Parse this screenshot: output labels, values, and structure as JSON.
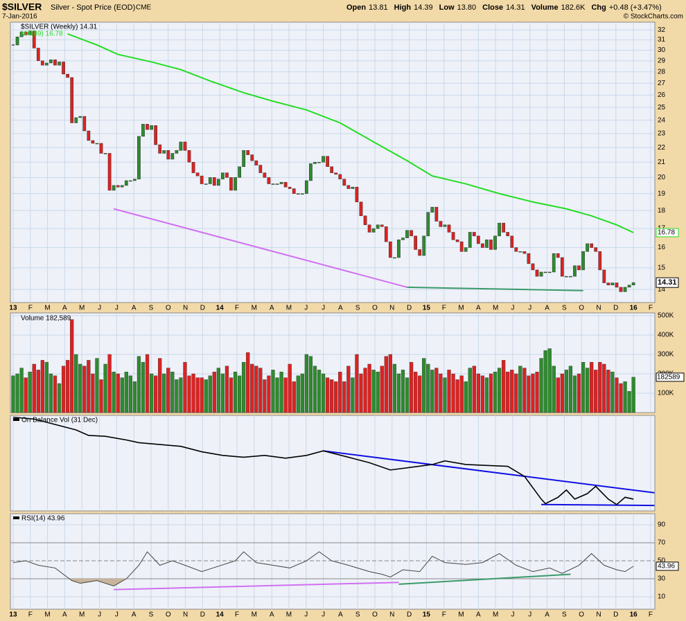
{
  "header": {
    "symbol": "$SILVER",
    "name": "Silver - Spot Price (EOD)",
    "exchange": "CME",
    "date": "7-Jan-2016",
    "credit": "© StockCharts.com",
    "quote_labels": [
      "Open",
      "High",
      "Low",
      "Close",
      "Volume",
      "Chg"
    ],
    "quote_values": [
      "13.81",
      "14.39",
      "13.80",
      "14.31",
      "182.6K",
      "+0.48 (+3.47%)"
    ]
  },
  "chart_data": [
    {
      "type": "candlestick",
      "legend": "$SILVER (Weekly) 14.31",
      "last_label": "14.31",
      "log": true,
      "up_color": "#2e8b2e",
      "down_color": "#dd2222",
      "closes": [
        30.5,
        31.3,
        31.8,
        31.5,
        31.9,
        30.2,
        29.0,
        28.6,
        28.8,
        29.1,
        28.6,
        28.9,
        27.8,
        27.5,
        23.8,
        24.2,
        24.3,
        23.2,
        22.5,
        22.3,
        22.3,
        21.6,
        21.6,
        19.2,
        19.5,
        19.4,
        19.5,
        19.8,
        19.8,
        19.9,
        22.8,
        23.7,
        23.3,
        23.6,
        22.2,
        21.6,
        21.8,
        21.2,
        21.6,
        21.8,
        22.4,
        21.8,
        21.0,
        20.3,
        20.1,
        19.6,
        19.6,
        20.0,
        19.5,
        19.9,
        20.3,
        20.0,
        19.2,
        20.0,
        20.7,
        21.8,
        21.5,
        21.1,
        20.8,
        20.3,
        20.0,
        19.6,
        19.6,
        19.6,
        19.7,
        19.4,
        19.3,
        19.0,
        19.0,
        19.0,
        19.8,
        20.9,
        21.0,
        21.0,
        21.4,
        20.7,
        20.3,
        20.2,
        19.9,
        19.5,
        19.3,
        19.4,
        18.5,
        17.7,
        17.2,
        16.8,
        17.0,
        17.2,
        17.1,
        16.3,
        15.5,
        15.5,
        16.4,
        16.5,
        16.9,
        16.6,
        15.9,
        15.6,
        16.6,
        17.9,
        18.2,
        17.4,
        17.1,
        17.2,
        16.8,
        16.4,
        16.3,
        15.8,
        16.0,
        16.8,
        16.6,
        16.2,
        16.0,
        16.4,
        15.9,
        16.6,
        17.3,
        16.8,
        16.6,
        16.0,
        15.8,
        15.8,
        15.7,
        15.2,
        14.9,
        14.6,
        14.8,
        14.8,
        14.8,
        15.7,
        15.5,
        14.6,
        14.6,
        14.6,
        15.1,
        14.9,
        15.8,
        16.2,
        16.0,
        15.8,
        14.9,
        14.3,
        14.2,
        14.3,
        14.1,
        13.9,
        14.1,
        14.2,
        14.31
      ],
      "ma": {
        "name": "MA(89) 16.78",
        "label": "16.78",
        "color": "#22dd22",
        "x": [
          13,
          20,
          25,
          33,
          40,
          47,
          55,
          62,
          70,
          78,
          86,
          94,
          100,
          108,
          116,
          124,
          132,
          138,
          144,
          148
        ],
        "values": [
          31.6,
          30.5,
          29.6,
          28.9,
          28.2,
          27.2,
          26.2,
          25.5,
          24.8,
          23.8,
          22.4,
          21.1,
          20.1,
          19.6,
          19.0,
          18.5,
          18.1,
          17.7,
          17.2,
          16.78
        ]
      },
      "trendlines": [
        {
          "color": "#d070f0",
          "x": [
            24,
            94
          ],
          "values": [
            18.1,
            14.1
          ]
        },
        {
          "color": "#3a9a6a",
          "x": [
            94,
            136
          ],
          "values": [
            14.1,
            13.95
          ]
        }
      ],
      "xlim": [
        -0.66,
        153.1
      ],
      "ylim": [
        13.43,
        32.8
      ],
      "yticks": [
        14,
        15,
        16,
        17,
        18,
        19,
        20,
        21,
        22,
        23,
        24,
        25,
        26,
        27,
        28,
        29,
        30,
        31,
        32
      ],
      "xticks": [
        {
          "value": 0,
          "label": "13"
        },
        {
          "value": 4.1,
          "label": "F"
        },
        {
          "value": 8.2,
          "label": "M"
        },
        {
          "value": 12.3,
          "label": "A"
        },
        {
          "value": 16.4,
          "label": "M"
        },
        {
          "value": 20.6,
          "label": "J"
        },
        {
          "value": 24.7,
          "label": "J"
        },
        {
          "value": 28.8,
          "label": "A"
        },
        {
          "value": 32.9,
          "label": "S"
        },
        {
          "value": 37,
          "label": "O"
        },
        {
          "value": 41.1,
          "label": "N"
        },
        {
          "value": 45.2,
          "label": "D"
        },
        {
          "value": 49.3,
          "label": "14"
        },
        {
          "value": 53.4,
          "label": "F"
        },
        {
          "value": 57.5,
          "label": "M"
        },
        {
          "value": 61.7,
          "label": "A"
        },
        {
          "value": 65.8,
          "label": "M"
        },
        {
          "value": 69.9,
          "label": "J"
        },
        {
          "value": 74,
          "label": "J"
        },
        {
          "value": 78.1,
          "label": "A"
        },
        {
          "value": 82.2,
          "label": "S"
        },
        {
          "value": 86.3,
          "label": "O"
        },
        {
          "value": 90.4,
          "label": "N"
        },
        {
          "value": 94.5,
          "label": "D"
        },
        {
          "value": 98.6,
          "label": "15"
        },
        {
          "value": 102.8,
          "label": "F"
        },
        {
          "value": 106.9,
          "label": "M"
        },
        {
          "value": 111,
          "label": "A"
        },
        {
          "value": 115.1,
          "label": "M"
        },
        {
          "value": 119.2,
          "label": "J"
        },
        {
          "value": 123.3,
          "label": "J"
        },
        {
          "value": 127.4,
          "label": "A"
        },
        {
          "value": 131.5,
          "label": "S"
        },
        {
          "value": 135.6,
          "label": "O"
        },
        {
          "value": 139.7,
          "label": "N"
        },
        {
          "value": 143.8,
          "label": "D"
        },
        {
          "value": 148,
          "label": "16"
        },
        {
          "value": 152.1,
          "label": "F"
        }
      ]
    },
    {
      "type": "bar",
      "legend": "Volume 182,589",
      "last_label": "182589",
      "xlim": [
        -0.66,
        153.1
      ],
      "ylim": [
        0,
        514000
      ],
      "yticks": [
        {
          "value": 100000,
          "label": "100K"
        },
        {
          "value": 200000,
          "label": "200K"
        },
        {
          "value": 300000,
          "label": "300K"
        },
        {
          "value": 400000,
          "label": "400K"
        },
        {
          "value": 500000,
          "label": "500K"
        }
      ],
      "values": [
        190000,
        200000,
        230000,
        180000,
        210000,
        250000,
        220000,
        270000,
        260000,
        200000,
        190000,
        150000,
        240000,
        270000,
        480000,
        300000,
        250000,
        240000,
        270000,
        200000,
        280000,
        170000,
        250000,
        300000,
        210000,
        200000,
        180000,
        210000,
        190000,
        160000,
        290000,
        260000,
        300000,
        200000,
        190000,
        280000,
        200000,
        230000,
        210000,
        170000,
        180000,
        260000,
        190000,
        200000,
        180000,
        180000,
        170000,
        190000,
        210000,
        230000,
        200000,
        240000,
        180000,
        210000,
        190000,
        260000,
        310000,
        250000,
        240000,
        230000,
        170000,
        190000,
        220000,
        180000,
        210000,
        180000,
        250000,
        160000,
        190000,
        200000,
        300000,
        290000,
        240000,
        220000,
        200000,
        180000,
        170000,
        160000,
        210000,
        160000,
        240000,
        180000,
        300000,
        200000,
        230000,
        250000,
        220000,
        210000,
        240000,
        290000,
        300000,
        250000,
        200000,
        220000,
        180000,
        260000,
        210000,
        190000,
        280000,
        250000,
        220000,
        230000,
        200000,
        180000,
        220000,
        200000,
        170000,
        190000,
        160000,
        230000,
        240000,
        200000,
        190000,
        180000,
        200000,
        210000,
        230000,
        270000,
        210000,
        220000,
        200000,
        240000,
        230000,
        190000,
        200000,
        210000,
        280000,
        320000,
        330000,
        240000,
        180000,
        200000,
        220000,
        240000,
        190000,
        200000,
        260000,
        230000,
        260000,
        220000,
        260000,
        250000,
        220000,
        210000,
        180000,
        150000,
        160000,
        110000,
        182589
      ]
    },
    {
      "type": "line",
      "legend": "On Balance Vol (31 Dec)",
      "color": "#000000",
      "xlim": [
        -0.66,
        153.1
      ],
      "ylim": [
        -3,
        102
      ],
      "x": [
        0,
        5,
        10,
        15,
        18,
        22,
        27,
        30,
        35,
        40,
        45,
        50,
        55,
        60,
        65,
        70,
        74,
        80,
        85,
        90,
        95,
        100,
        103,
        108,
        113,
        118,
        122,
        126,
        127,
        130,
        132,
        134,
        137,
        139,
        142,
        144,
        146,
        148
      ],
      "values": [
        100,
        98,
        92,
        86,
        80,
        79,
        75,
        72,
        70,
        68,
        62,
        58,
        56,
        58,
        55,
        58,
        63,
        56,
        50,
        42,
        45,
        48,
        52,
        48,
        47,
        46,
        35,
        10,
        5,
        12,
        20,
        10,
        16,
        24,
        10,
        4,
        12,
        10
      ],
      "trendlines": [
        {
          "color": "#1010e0",
          "x": [
            74,
            153
          ],
          "values": [
            63,
            17
          ]
        },
        {
          "color": "#1010e0",
          "x": [
            126,
            153
          ],
          "values": [
            4,
            3
          ]
        }
      ]
    },
    {
      "type": "line",
      "legend": "RSI(14) 43.96",
      "last_label": "43.96",
      "color": "#444444",
      "fill_below": 30,
      "fill_color": "#c8b49a",
      "xlim": [
        -0.66,
        153.1
      ],
      "ylim": [
        -3.8,
        102.3
      ],
      "yticks": [
        10,
        30,
        50,
        70,
        90
      ],
      "x": [
        0,
        3,
        6,
        10,
        14,
        16,
        20,
        24,
        27,
        30,
        32,
        35,
        38,
        41,
        45,
        49,
        53,
        55,
        58,
        62,
        66,
        70,
        73,
        76,
        80,
        85,
        88,
        90,
        93,
        97,
        100,
        103,
        108,
        112,
        116,
        120,
        124,
        128,
        131,
        135,
        138,
        141,
        144,
        146,
        148
      ],
      "values": [
        48,
        50,
        45,
        42,
        28,
        25,
        28,
        22,
        30,
        45,
        60,
        45,
        50,
        45,
        38,
        44,
        50,
        60,
        48,
        45,
        42,
        50,
        60,
        50,
        45,
        38,
        35,
        32,
        40,
        38,
        55,
        48,
        46,
        48,
        58,
        45,
        38,
        42,
        36,
        45,
        58,
        45,
        40,
        38,
        43.96
      ],
      "trendlines": [
        {
          "color": "#d070f0",
          "x": [
            24,
            92
          ],
          "values": [
            18,
            26
          ]
        },
        {
          "color": "#3a9a6a",
          "x": [
            92,
            133
          ],
          "values": [
            24,
            35
          ]
        }
      ],
      "xticks": [
        {
          "value": 0,
          "label": "13"
        },
        {
          "value": 4.1,
          "label": "F"
        },
        {
          "value": 8.2,
          "label": "M"
        },
        {
          "value": 12.3,
          "label": "A"
        },
        {
          "value": 16.4,
          "label": "M"
        },
        {
          "value": 20.6,
          "label": "J"
        },
        {
          "value": 24.7,
          "label": "J"
        },
        {
          "value": 28.8,
          "label": "A"
        },
        {
          "value": 32.9,
          "label": "S"
        },
        {
          "value": 37,
          "label": "O"
        },
        {
          "value": 41.1,
          "label": "N"
        },
        {
          "value": 45.2,
          "label": "D"
        },
        {
          "value": 49.3,
          "label": "14"
        },
        {
          "value": 53.4,
          "label": "F"
        },
        {
          "value": 57.5,
          "label": "M"
        },
        {
          "value": 61.7,
          "label": "A"
        },
        {
          "value": 65.8,
          "label": "M"
        },
        {
          "value": 69.9,
          "label": "J"
        },
        {
          "value": 74,
          "label": "J"
        },
        {
          "value": 78.1,
          "label": "A"
        },
        {
          "value": 82.2,
          "label": "S"
        },
        {
          "value": 86.3,
          "label": "O"
        },
        {
          "value": 90.4,
          "label": "N"
        },
        {
          "value": 94.5,
          "label": "D"
        },
        {
          "value": 98.6,
          "label": "15"
        },
        {
          "value": 102.8,
          "label": "F"
        },
        {
          "value": 106.9,
          "label": "M"
        },
        {
          "value": 111,
          "label": "A"
        },
        {
          "value": 115.1,
          "label": "M"
        },
        {
          "value": 119.2,
          "label": "J"
        },
        {
          "value": 123.3,
          "label": "J"
        },
        {
          "value": 127.4,
          "label": "A"
        },
        {
          "value": 131.5,
          "label": "S"
        },
        {
          "value": 135.6,
          "label": "O"
        },
        {
          "value": 139.7,
          "label": "N"
        },
        {
          "value": 143.8,
          "label": "D"
        },
        {
          "value": 148,
          "label": "16"
        },
        {
          "value": 152.1,
          "label": "F"
        }
      ]
    }
  ]
}
